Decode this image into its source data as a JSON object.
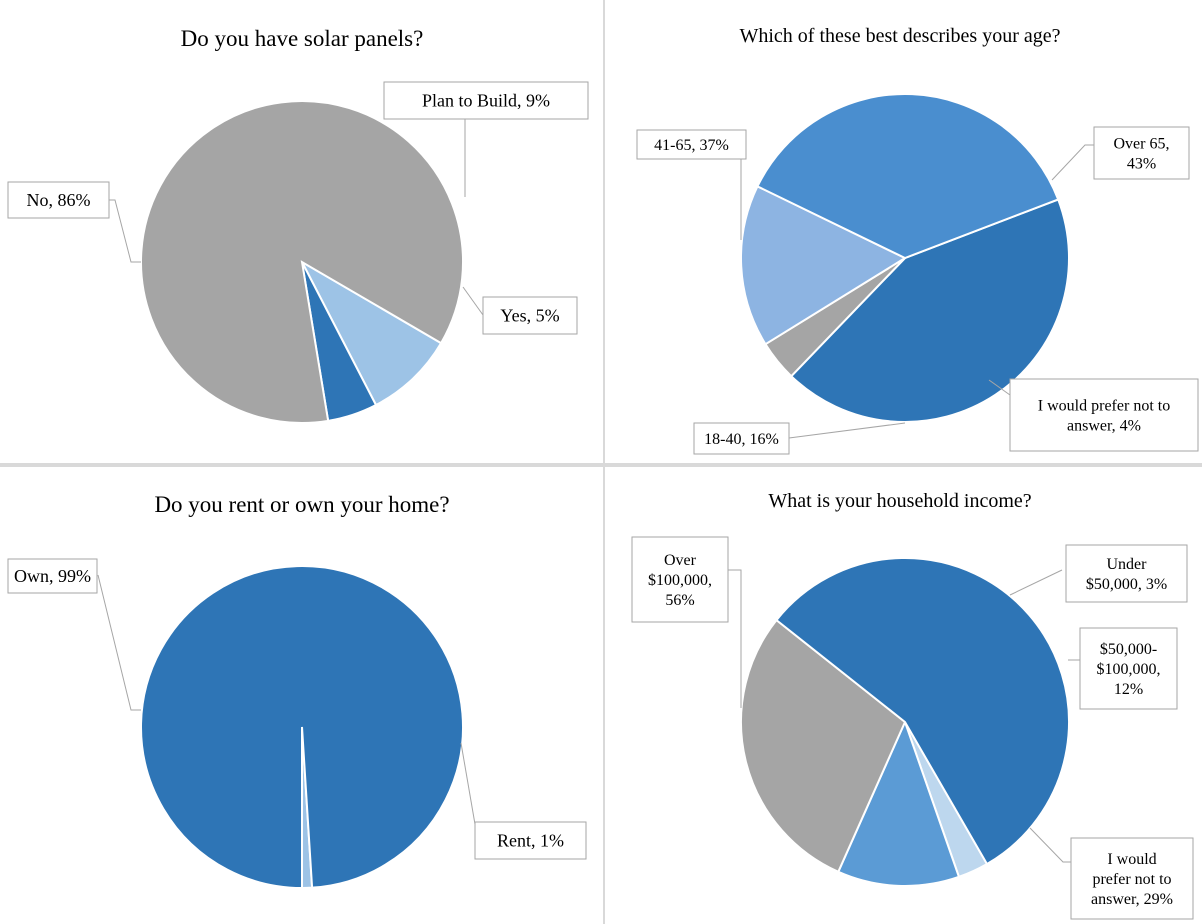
{
  "chart_data": [
    {
      "type": "pie",
      "title": "Do you have solar panels?",
      "slices": [
        {
          "label": "Plan to Build",
          "value": 9,
          "color": "#9DC3E6",
          "display": [
            "Plan to Build, 9%"
          ]
        },
        {
          "label": "Yes",
          "value": 5,
          "color": "#2E75B6",
          "display": [
            "Yes, 5%"
          ]
        },
        {
          "label": "No",
          "value": 86,
          "color": "#A5A5A5",
          "display": [
            "No, 86%"
          ]
        }
      ]
    },
    {
      "type": "pie",
      "title": "Which of these best describes your age?",
      "slices": [
        {
          "label": "Over 65",
          "value": 43,
          "color": "#2E75B6",
          "display": [
            "Over 65,",
            "43%"
          ]
        },
        {
          "label": "I would prefer not to answer",
          "value": 4,
          "color": "#A5A5A5",
          "display": [
            "I would prefer not to",
            "answer, 4%"
          ]
        },
        {
          "label": "18-40",
          "value": 16,
          "color": "#8DB4E2",
          "display": [
            "18-40, 16%"
          ]
        },
        {
          "label": "41-65",
          "value": 37,
          "color": "#4A8ECF",
          "display": [
            "41-65, 37%"
          ]
        }
      ]
    },
    {
      "type": "pie",
      "title": "Do you rent or own your home?",
      "slices": [
        {
          "label": "Rent",
          "value": 1,
          "color": "#9DC3E6",
          "display": [
            "Rent, 1%"
          ]
        },
        {
          "label": "Own",
          "value": 99,
          "color": "#2E75B6",
          "display": [
            "Own, 99%"
          ]
        }
      ]
    },
    {
      "type": "pie",
      "title": "What is your household income?",
      "slices": [
        {
          "label": "Under $50,000",
          "value": 3,
          "color": "#BDD7EE",
          "display": [
            "Under",
            "$50,000, 3%"
          ]
        },
        {
          "label": "$50,000-$100,000",
          "value": 12,
          "color": "#5B9BD5",
          "display": [
            "$50,000-",
            "$100,000,",
            "12%"
          ]
        },
        {
          "label": "I would prefer not to answer",
          "value": 29,
          "color": "#A5A5A5",
          "display": [
            "I would",
            "prefer not to",
            "answer, 29%"
          ]
        },
        {
          "label": "Over $100,000",
          "value": 56,
          "color": "#2E75B6",
          "display": [
            "Over",
            "$100,000,",
            "56%"
          ]
        }
      ]
    }
  ]
}
